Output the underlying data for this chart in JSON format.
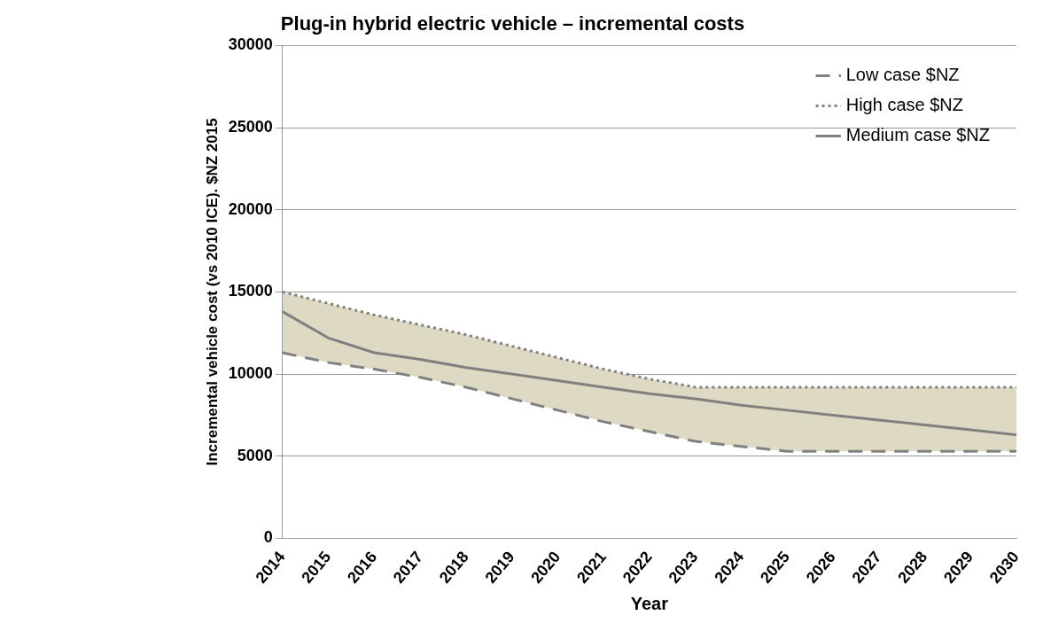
{
  "chart_data": {
    "type": "line",
    "title": "Plug-in hybrid electric vehicle – incremental costs",
    "xlabel": "Year",
    "ylabel": "Incremental vehicle cost (vs 2010 ICE). $NZ 2015",
    "categories": [
      "2014",
      "2015",
      "2016",
      "2017",
      "2018",
      "2019",
      "2020",
      "2021",
      "2022",
      "2023",
      "2024",
      "2025",
      "2026",
      "2027",
      "2028",
      "2029",
      "2030"
    ],
    "series": [
      {
        "name": "Low case $NZ",
        "color": "#808080",
        "line_style": "dashed",
        "values": [
          11300,
          10700,
          10300,
          9800,
          9200,
          8500,
          7800,
          7100,
          6500,
          5900,
          5600,
          5300,
          5300,
          5300,
          5300,
          5300,
          5300
        ]
      },
      {
        "name": "High case $NZ",
        "color": "#808080",
        "line_style": "dotted",
        "values": [
          15000,
          14300,
          13600,
          13000,
          12400,
          11700,
          11000,
          10300,
          9700,
          9200,
          9200,
          9200,
          9200,
          9200,
          9200,
          9200,
          9200
        ]
      },
      {
        "name": "Medium case $NZ",
        "color": "#808080",
        "line_style": "solid",
        "values": [
          13800,
          12200,
          11300,
          10900,
          10400,
          10000,
          9600,
          9200,
          8800,
          8500,
          8100,
          7800,
          7500,
          7200,
          6900,
          6600,
          6300
        ],
        "lower": [
          11300,
          10700,
          10300,
          9800,
          9200,
          8500,
          7800,
          7100,
          6500,
          5900,
          5600,
          5300,
          5300,
          5300,
          5300,
          5300,
          5300
        ],
        "upper": [
          15000,
          14300,
          13600,
          13000,
          12400,
          11700,
          11000,
          10300,
          9700,
          9200,
          9200,
          9200,
          9200,
          9200,
          9200,
          9200,
          9200
        ]
      }
    ],
    "ylim": [
      0,
      30000
    ],
    "yticks": [
      0,
      5000,
      10000,
      15000,
      20000,
      25000,
      30000
    ],
    "grid": "y",
    "legend": "top right",
    "marker": "none"
  }
}
